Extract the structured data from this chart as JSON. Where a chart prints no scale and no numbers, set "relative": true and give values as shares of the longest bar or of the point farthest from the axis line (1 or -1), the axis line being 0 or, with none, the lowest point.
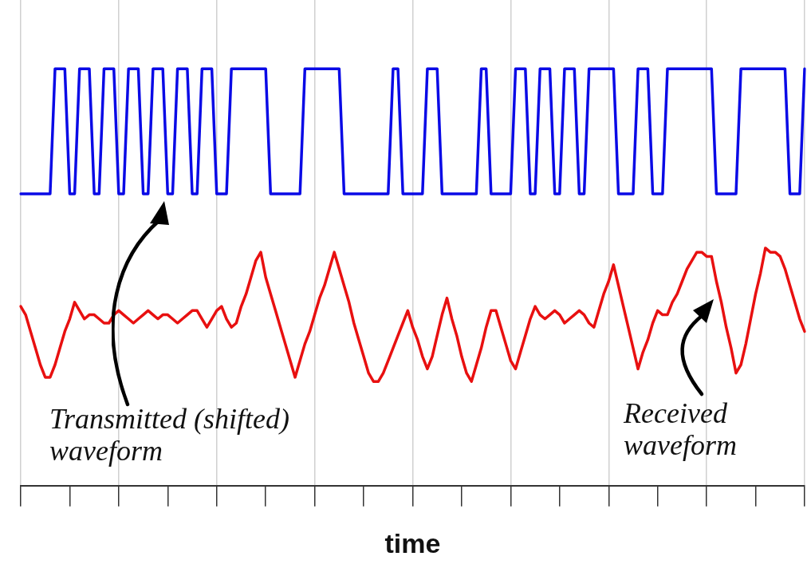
{
  "chart_data": {
    "type": "line",
    "relative": true,
    "xlabel": "time",
    "grid": "x",
    "legend": false,
    "marker": "none",
    "line_style": "solid",
    "categories": [
      null,
      null,
      null,
      null,
      null,
      null,
      null,
      null,
      null,
      null,
      null,
      null,
      null,
      null,
      null,
      null,
      null,
      null,
      null,
      null,
      null,
      null,
      null,
      null,
      null,
      null,
      null,
      null,
      null,
      null,
      null,
      null,
      null,
      null,
      null,
      null,
      null,
      null,
      null,
      null,
      null,
      null,
      null,
      null,
      null,
      null,
      null,
      null,
      null,
      null,
      null,
      null,
      null,
      null,
      null,
      null,
      null,
      null,
      null,
      null,
      null,
      null,
      null,
      null,
      null,
      null,
      null,
      null,
      null,
      null,
      null,
      null,
      null,
      null,
      null,
      null,
      null,
      null,
      null,
      null,
      null,
      null,
      null,
      null,
      null,
      null,
      null,
      null,
      null,
      null,
      null,
      null,
      null,
      null,
      null,
      null,
      null,
      null,
      null,
      null,
      null,
      null,
      null,
      null,
      null,
      null,
      null,
      null,
      null,
      null,
      null,
      null,
      null,
      null,
      null,
      null,
      null,
      null,
      null,
      null,
      null,
      null,
      null,
      null,
      null,
      null,
      null,
      null,
      null,
      null,
      null,
      null,
      null,
      null,
      null,
      null,
      null,
      null,
      null,
      null,
      null,
      null,
      null,
      null,
      null,
      null,
      null,
      null,
      null,
      null,
      null,
      null,
      null,
      null,
      null,
      null,
      null,
      null,
      null,
      null,
      null
    ],
    "series": [
      {
        "color": "#0a0ae6",
        "values": [
          0.7,
          0.7,
          0.7,
          0.7,
          0.7,
          0.7,
          0.7,
          1,
          1,
          1,
          0.7,
          0.7,
          1,
          1,
          1,
          0.7,
          0.7,
          1,
          1,
          1,
          0.7,
          0.7,
          1,
          1,
          1,
          0.7,
          0.7,
          1,
          1,
          1,
          0.7,
          0.7,
          1,
          1,
          1,
          0.7,
          0.7,
          1,
          1,
          1,
          0.7,
          0.7,
          0.7,
          1,
          1,
          1,
          1,
          1,
          1,
          1,
          1,
          0.7,
          0.7,
          0.7,
          0.7,
          0.7,
          0.7,
          0.7,
          1,
          1,
          1,
          1,
          1,
          1,
          1,
          1,
          0.7,
          0.7,
          0.7,
          0.7,
          0.7,
          0.7,
          0.7,
          0.7,
          0.7,
          0.7,
          1,
          1,
          0.7,
          0.7,
          0.7,
          0.7,
          0.7,
          1,
          1,
          1,
          0.7,
          0.7,
          0.7,
          0.7,
          0.7,
          0.7,
          0.7,
          0.7,
          1,
          1,
          0.7,
          0.7,
          0.7,
          0.7,
          0.7,
          1,
          1,
          1,
          0.7,
          0.7,
          1,
          1,
          1,
          0.7,
          0.7,
          1,
          1,
          1,
          0.7,
          0.7,
          1,
          1,
          1,
          1,
          1,
          1,
          0.7,
          0.7,
          0.7,
          0.7,
          1,
          1,
          1,
          0.7,
          0.7,
          0.7,
          1,
          1,
          1,
          1,
          1,
          1,
          1,
          1,
          1,
          1,
          0.7,
          0.7,
          0.7,
          0.7,
          0.7,
          1,
          1,
          1,
          1,
          1,
          1,
          1,
          1,
          1,
          1,
          0.7,
          0.7,
          0.7,
          1
        ]
      },
      {
        "color": "#e81010",
        "values": [
          0.43,
          0.41,
          0.37,
          0.33,
          0.29,
          0.26,
          0.26,
          0.29,
          0.33,
          0.37,
          0.4,
          0.44,
          0.42,
          0.4,
          0.41,
          0.41,
          0.4,
          0.39,
          0.39,
          0.41,
          0.42,
          0.41,
          0.4,
          0.39,
          0.4,
          0.41,
          0.42,
          0.41,
          0.4,
          0.41,
          0.41,
          0.4,
          0.39,
          0.4,
          0.41,
          0.42,
          0.42,
          0.4,
          0.38,
          0.4,
          0.42,
          0.43,
          0.4,
          0.38,
          0.39,
          0.43,
          0.46,
          0.5,
          0.54,
          0.56,
          0.5,
          0.46,
          0.42,
          0.38,
          0.34,
          0.3,
          0.26,
          0.3,
          0.34,
          0.37,
          0.41,
          0.45,
          0.48,
          0.52,
          0.56,
          0.52,
          0.48,
          0.44,
          0.39,
          0.35,
          0.31,
          0.27,
          0.25,
          0.25,
          0.27,
          0.3,
          0.33,
          0.36,
          0.39,
          0.42,
          0.38,
          0.35,
          0.31,
          0.28,
          0.31,
          0.36,
          0.41,
          0.45,
          0.4,
          0.36,
          0.31,
          0.27,
          0.25,
          0.29,
          0.33,
          0.38,
          0.42,
          0.42,
          0.38,
          0.34,
          0.3,
          0.28,
          0.32,
          0.36,
          0.4,
          0.43,
          0.41,
          0.4,
          0.41,
          0.42,
          0.41,
          0.39,
          0.4,
          0.41,
          0.42,
          0.41,
          0.39,
          0.38,
          0.42,
          0.46,
          0.49,
          0.53,
          0.48,
          0.43,
          0.38,
          0.33,
          0.28,
          0.32,
          0.35,
          0.39,
          0.42,
          0.41,
          0.41,
          0.44,
          0.46,
          0.49,
          0.52,
          0.54,
          0.56,
          0.56,
          0.55,
          0.55,
          0.49,
          0.44,
          0.38,
          0.33,
          0.27,
          0.29,
          0.34,
          0.4,
          0.46,
          0.51,
          0.57,
          0.56,
          0.56,
          0.55,
          0.52,
          0.48,
          0.44,
          0.4,
          0.37
        ]
      }
    ],
    "annotations": [
      "Transmitted (shifted) waveform",
      "Received waveform"
    ]
  }
}
